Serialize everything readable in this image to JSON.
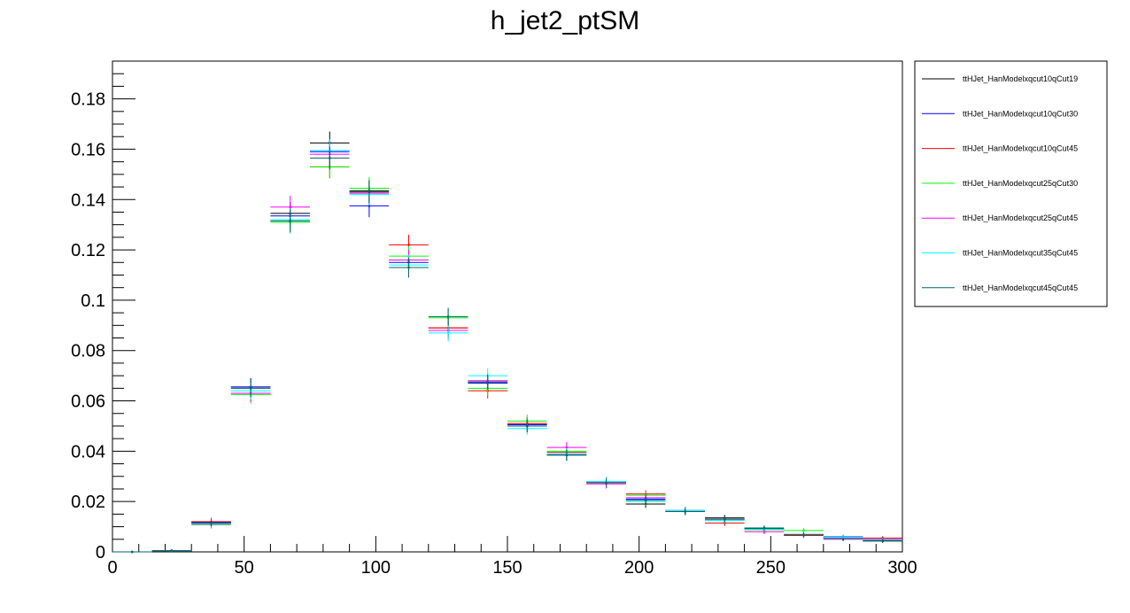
{
  "chart_data": {
    "type": "histogram",
    "title": "h_jet2_ptSM",
    "xlim": [
      0,
      300
    ],
    "ylim": [
      0,
      0.195
    ],
    "xticks": [
      0,
      50,
      100,
      150,
      200,
      250,
      300
    ],
    "yticks": [
      0,
      0.02,
      0.04,
      0.06,
      0.08,
      0.1,
      0.12,
      0.14,
      0.16,
      0.18
    ],
    "xtick_labels": [
      "0",
      "50",
      "100",
      "150",
      "200",
      "250",
      "300"
    ],
    "ytick_labels": [
      "0",
      "0.02",
      "0.04",
      "0.06",
      "0.08",
      "0.1",
      "0.12",
      "0.14",
      "0.16",
      "0.18"
    ],
    "bin_width": 15,
    "bin_centers": [
      7.5,
      22.5,
      37.5,
      52.5,
      67.5,
      82.5,
      97.5,
      112.5,
      127.5,
      142.5,
      157.5,
      172.5,
      187.5,
      202.5,
      217.5,
      232.5,
      247.5,
      262.5,
      277.5,
      292.5
    ],
    "grid": false,
    "legend_position": "right",
    "series": [
      {
        "name": "ttHJet_HanModelxqcut10qCut19",
        "color": "#000000",
        "values": [
          0.0,
          0.0005,
          0.0118,
          0.0655,
          0.1345,
          0.1625,
          0.1435,
          0.116,
          0.089,
          0.0675,
          0.051,
          0.0385,
          0.0275,
          0.019,
          0.0165,
          0.0135,
          0.0092,
          0.0068,
          0.0055,
          0.0043
        ],
        "errors": [
          0.0,
          0.0002,
          0.0015,
          0.0035,
          0.0045,
          0.0045,
          0.0045,
          0.004,
          0.0035,
          0.003,
          0.0025,
          0.0022,
          0.0018,
          0.0015,
          0.0014,
          0.0012,
          0.001,
          0.0009,
          0.0008,
          0.0007
        ]
      },
      {
        "name": "ttHJet_HanModelxqcut10qCut30",
        "color": "#0000ff",
        "values": [
          0.0,
          0.0005,
          0.0118,
          0.0655,
          0.1335,
          0.159,
          0.1375,
          0.115,
          0.088,
          0.067,
          0.0505,
          0.0385,
          0.0275,
          0.021,
          0.016,
          0.013,
          0.0088,
          0.0068,
          0.006,
          0.0045
        ],
        "errors": [
          0.0,
          0.0002,
          0.0015,
          0.0035,
          0.0045,
          0.0045,
          0.0045,
          0.004,
          0.0035,
          0.003,
          0.0025,
          0.0022,
          0.0018,
          0.0015,
          0.0014,
          0.0012,
          0.001,
          0.0009,
          0.0008,
          0.0007
        ]
      },
      {
        "name": "ttHJet_HanModelxqcut10qCut45",
        "color": "#ff0000",
        "values": [
          0.0,
          0.0005,
          0.012,
          0.063,
          0.132,
          0.153,
          0.143,
          0.122,
          0.089,
          0.064,
          0.051,
          0.0395,
          0.0275,
          0.023,
          0.016,
          0.0115,
          0.009,
          0.0065,
          0.0055,
          0.0055
        ],
        "errors": [
          0.0,
          0.0002,
          0.0015,
          0.0035,
          0.0045,
          0.0045,
          0.0045,
          0.004,
          0.0035,
          0.003,
          0.0025,
          0.0022,
          0.0018,
          0.0015,
          0.0014,
          0.0012,
          0.001,
          0.0009,
          0.0008,
          0.0007
        ]
      },
      {
        "name": "ttHJet_HanModelxqcut25qCut30",
        "color": "#00ff00",
        "values": [
          0.0,
          0.0005,
          0.0108,
          0.0625,
          0.131,
          0.153,
          0.1445,
          0.1175,
          0.093,
          0.065,
          0.052,
          0.04,
          0.028,
          0.0225,
          0.016,
          0.013,
          0.0088,
          0.0085,
          0.0055,
          0.0048
        ],
        "errors": [
          0.0,
          0.0002,
          0.0015,
          0.0035,
          0.0045,
          0.0045,
          0.0045,
          0.004,
          0.0035,
          0.003,
          0.0025,
          0.0022,
          0.0018,
          0.0015,
          0.0014,
          0.0012,
          0.001,
          0.0009,
          0.0008,
          0.0007
        ]
      },
      {
        "name": "ttHJet_HanModelxqcut25qCut45",
        "color": "#ff00ff",
        "values": [
          0.0,
          0.0005,
          0.011,
          0.063,
          0.137,
          0.158,
          0.1425,
          0.116,
          0.088,
          0.068,
          0.05,
          0.0415,
          0.027,
          0.0215,
          0.0165,
          0.013,
          0.008,
          0.007,
          0.0055,
          0.005
        ],
        "errors": [
          0.0,
          0.0002,
          0.0015,
          0.0035,
          0.0045,
          0.0045,
          0.0045,
          0.004,
          0.0035,
          0.003,
          0.0025,
          0.0022,
          0.0018,
          0.0015,
          0.0014,
          0.0012,
          0.001,
          0.0009,
          0.0008,
          0.0007
        ]
      },
      {
        "name": "ttHJet_HanModelxqcut35qCut45",
        "color": "#00ffff",
        "values": [
          0.0,
          0.0005,
          0.0112,
          0.064,
          0.132,
          0.1595,
          0.142,
          0.114,
          0.087,
          0.07,
          0.049,
          0.039,
          0.028,
          0.02,
          0.0165,
          0.0125,
          0.009,
          0.007,
          0.0058,
          0.0048
        ],
        "errors": [
          0.0,
          0.0002,
          0.0015,
          0.0035,
          0.0045,
          0.0045,
          0.0045,
          0.004,
          0.0035,
          0.003,
          0.0025,
          0.0022,
          0.0018,
          0.0015,
          0.0014,
          0.0012,
          0.001,
          0.0009,
          0.0008,
          0.0007
        ]
      },
      {
        "name": "ttHJet_HanModelxqcut45qCut45",
        "color": "#006666",
        "values": [
          0.0,
          0.0005,
          0.0115,
          0.065,
          0.1315,
          0.1565,
          0.143,
          0.113,
          0.0935,
          0.0675,
          0.05,
          0.0385,
          0.0275,
          0.0205,
          0.016,
          0.013,
          0.0095,
          0.0068,
          0.005,
          0.0045
        ],
        "errors": [
          0.0,
          0.0002,
          0.0015,
          0.0035,
          0.0045,
          0.0045,
          0.0045,
          0.004,
          0.0035,
          0.003,
          0.0025,
          0.0022,
          0.0018,
          0.0015,
          0.0014,
          0.0012,
          0.001,
          0.0009,
          0.0008,
          0.0007
        ]
      }
    ]
  }
}
